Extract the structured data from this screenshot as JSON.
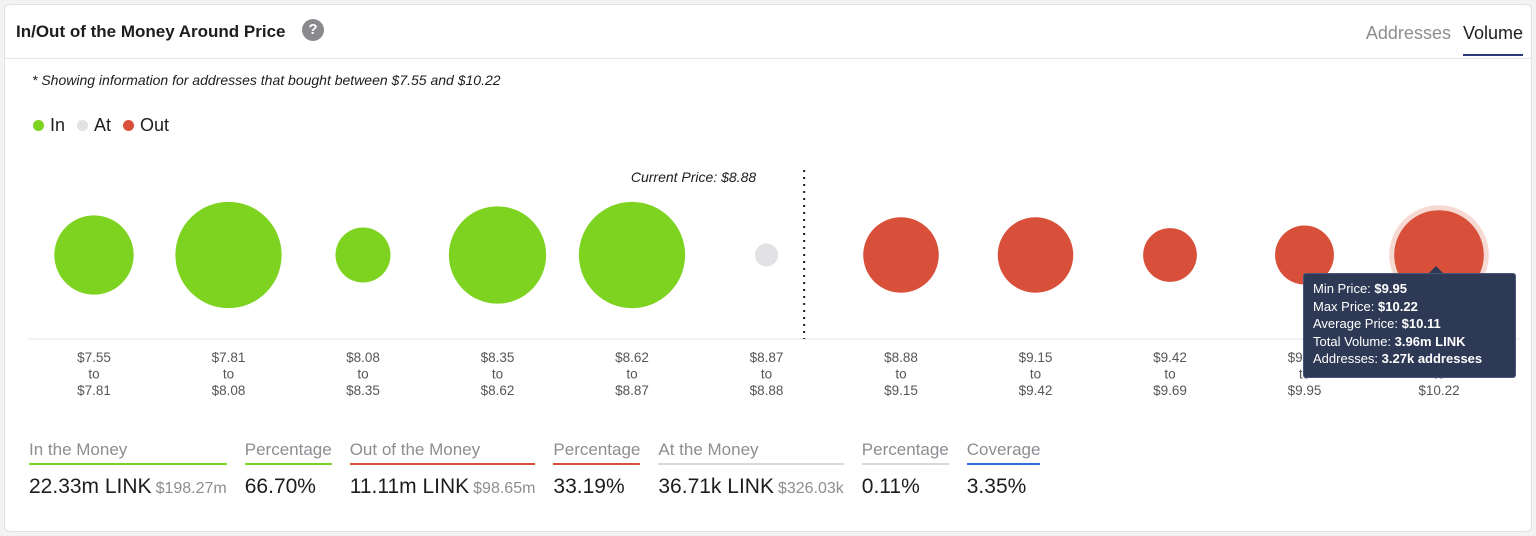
{
  "header": {
    "title": "In/Out of the Money Around Price",
    "help_icon": "?",
    "tabs": [
      {
        "label": "Addresses",
        "active": false
      },
      {
        "label": "Volume",
        "active": true
      }
    ]
  },
  "note": "* Showing information for addresses that bought between $7.55 and $10.22",
  "legend": [
    {
      "label": "In",
      "color": "#7ed321"
    },
    {
      "label": "At",
      "color": "#e2e2e4"
    },
    {
      "label": "Out",
      "color": "#d9503a"
    }
  ],
  "chart_data": {
    "type": "scatter",
    "current_price_label": "Current Price: $8.88",
    "bins": [
      {
        "min": "$7.55",
        "to": "to",
        "max": "$7.81",
        "status": "in",
        "size": 0.62
      },
      {
        "min": "$7.81",
        "to": "to",
        "max": "$8.08",
        "status": "in",
        "size": 0.83
      },
      {
        "min": "$8.08",
        "to": "to",
        "max": "$8.35",
        "status": "in",
        "size": 0.43
      },
      {
        "min": "$8.35",
        "to": "to",
        "max": "$8.62",
        "status": "in",
        "size": 0.76
      },
      {
        "min": "$8.62",
        "to": "to",
        "max": "$8.87",
        "status": "in",
        "size": 0.83
      },
      {
        "min": "$8.87",
        "to": "to",
        "max": "$8.88",
        "status": "at",
        "size": 0.18
      },
      {
        "min": "$8.88",
        "to": "to",
        "max": "$9.15",
        "status": "out",
        "size": 0.59
      },
      {
        "min": "$9.15",
        "to": "to",
        "max": "$9.42",
        "status": "out",
        "size": 0.59
      },
      {
        "min": "$9.42",
        "to": "to",
        "max": "$9.69",
        "status": "out",
        "size": 0.42
      },
      {
        "min": "$9.69",
        "to": "to",
        "max": "$9.95",
        "status": "out",
        "size": 0.46
      },
      {
        "min": "$9.95",
        "to": "to",
        "max": "$10.22",
        "status": "out",
        "size": 0.7
      }
    ],
    "colors": {
      "in": "#7ed321",
      "at": "#e2e2e4",
      "out": "#d9503a"
    }
  },
  "tooltip": {
    "min_label": "Min Price:",
    "min_value": "$9.95",
    "max_label": "Max Price:",
    "max_value": "$10.22",
    "avg_label": "Average Price:",
    "avg_value": "$10.11",
    "vol_label": "Total Volume:",
    "vol_value": "3.96m LINK",
    "addr_label": "Addresses:",
    "addr_value": "3.27k addresses"
  },
  "stats": [
    {
      "label": "In the Money",
      "value": "22.33m LINK",
      "sub": "$198.27m",
      "color": "#7ed321"
    },
    {
      "label": "Percentage",
      "value": "66.70%",
      "sub": "",
      "color": "#7ed321"
    },
    {
      "label": "Out of the Money",
      "value": "11.11m LINK",
      "sub": "$98.65m",
      "color": "#d9503a"
    },
    {
      "label": "Percentage",
      "value": "33.19%",
      "sub": "",
      "color": "#d9503a"
    },
    {
      "label": "At the Money",
      "value": "36.71k LINK",
      "sub": "$326.03k",
      "color": "#d9d9dc"
    },
    {
      "label": "Percentage",
      "value": "0.11%",
      "sub": "",
      "color": "#d9d9dc"
    },
    {
      "label": "Coverage",
      "value": "3.35%",
      "sub": "",
      "color": "#2f6fd6"
    }
  ]
}
